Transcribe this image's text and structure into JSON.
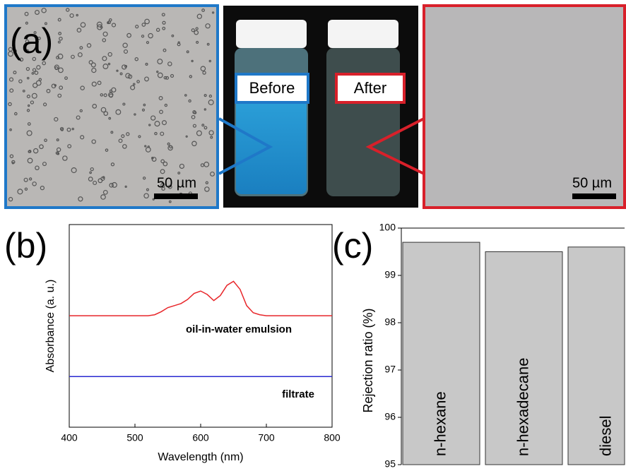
{
  "panel_a": {
    "label": "(a)",
    "before": "Before",
    "after": "After",
    "scale_left": "50 µm",
    "scale_right": "50 µm"
  },
  "chart_data": [
    {
      "type": "line",
      "label": "(b)",
      "x_label": "Wavelength (nm)",
      "y_label": "Absorbance (a. u.)",
      "x": [
        400,
        410,
        420,
        430,
        440,
        450,
        460,
        470,
        480,
        490,
        500,
        510,
        520,
        530,
        540,
        550,
        560,
        570,
        580,
        590,
        600,
        610,
        620,
        630,
        640,
        650,
        660,
        670,
        680,
        690,
        700,
        710,
        720,
        730,
        740,
        750,
        760,
        770,
        780,
        790,
        800
      ],
      "xlim": [
        400,
        800
      ],
      "xticks": [
        400,
        500,
        600,
        700,
        800
      ],
      "ylim": [
        0,
        1
      ],
      "series": [
        {
          "name": "oil-in-water emulsion",
          "color": "#e8262a",
          "values": [
            0.55,
            0.55,
            0.55,
            0.55,
            0.55,
            0.55,
            0.55,
            0.55,
            0.55,
            0.55,
            0.55,
            0.55,
            0.55,
            0.555,
            0.57,
            0.59,
            0.6,
            0.61,
            0.63,
            0.66,
            0.672,
            0.655,
            0.625,
            0.65,
            0.7,
            0.72,
            0.68,
            0.6,
            0.565,
            0.555,
            0.55,
            0.55,
            0.55,
            0.55,
            0.55,
            0.55,
            0.55,
            0.55,
            0.55,
            0.55,
            0.55
          ]
        },
        {
          "name": "filtrate",
          "color": "#2a2ad0",
          "values": [
            0.25,
            0.25,
            0.25,
            0.25,
            0.25,
            0.25,
            0.25,
            0.25,
            0.25,
            0.25,
            0.25,
            0.25,
            0.25,
            0.25,
            0.25,
            0.25,
            0.25,
            0.25,
            0.25,
            0.25,
            0.25,
            0.25,
            0.25,
            0.25,
            0.25,
            0.25,
            0.25,
            0.25,
            0.25,
            0.25,
            0.25,
            0.25,
            0.25,
            0.25,
            0.25,
            0.25,
            0.25,
            0.25,
            0.25,
            0.25,
            0.25
          ]
        }
      ]
    },
    {
      "type": "bar",
      "label": "(c)",
      "y_label": "Rejection ratio (%)",
      "categories": [
        "n-hexane",
        "n-hexadecane",
        "diesel"
      ],
      "values": [
        99.7,
        99.5,
        99.6
      ],
      "color": "#c8c8c8",
      "ylim": [
        95,
        100
      ],
      "yticks": [
        95,
        96,
        97,
        98,
        99,
        100
      ]
    }
  ]
}
